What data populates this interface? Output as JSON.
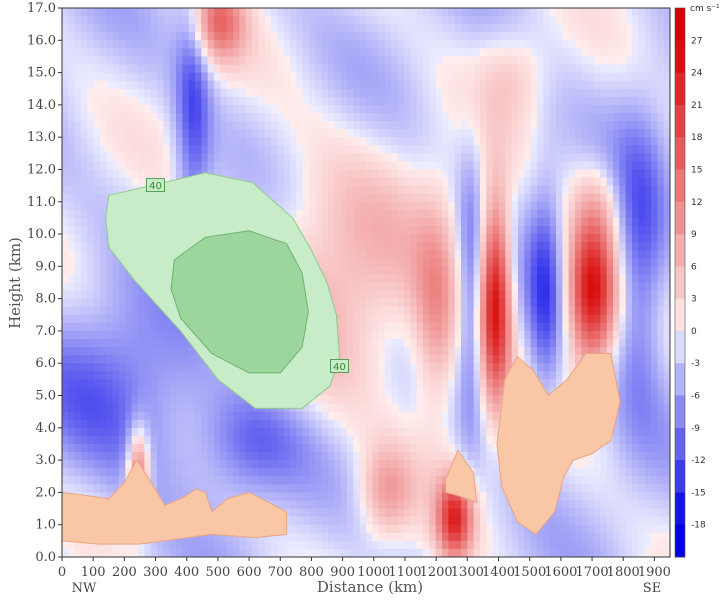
{
  "chart_data": {
    "type": "heatmap",
    "xlabel": "Distance (km)",
    "ylabel": "Height (km)",
    "xlim": [
      0,
      1950
    ],
    "ylim": [
      0,
      17
    ],
    "x_ticks": [
      "0",
      "100",
      "200",
      "300",
      "400",
      "500",
      "600",
      "700",
      "800",
      "900",
      "1000",
      "1100",
      "1200",
      "1300",
      "1400",
      "1500",
      "1600",
      "1700",
      "1800",
      "1900"
    ],
    "x_tick_values": [
      0,
      100,
      200,
      300,
      400,
      500,
      600,
      700,
      800,
      900,
      1000,
      1100,
      1200,
      1300,
      1400,
      1500,
      1600,
      1700,
      1800,
      1900
    ],
    "y_ticks": [
      "0.0",
      "1.0",
      "2.0",
      "3.0",
      "4.0",
      "5.0",
      "6.0",
      "7.0",
      "8.0",
      "9.0",
      "10.0",
      "11.0",
      "12.0",
      "13.0",
      "14.0",
      "15.0",
      "16.0",
      "17.0"
    ],
    "y_tick_values": [
      0,
      1,
      2,
      3,
      4,
      5,
      6,
      7,
      8,
      9,
      10,
      11,
      12,
      13,
      14,
      15,
      16,
      17
    ],
    "end_labels": {
      "left": "NW",
      "right": "SE"
    },
    "colorbar": {
      "unit": "cm s⁻¹",
      "levels": [
        "27",
        "24",
        "21",
        "18",
        "15",
        "12",
        "9",
        "6",
        "3",
        "0",
        "-3",
        "-6",
        "-9",
        "-12",
        "-15",
        "-18"
      ],
      "level_values": [
        27,
        24,
        21,
        18,
        15,
        12,
        9,
        6,
        3,
        0,
        -3,
        -6,
        -9,
        -12,
        -15,
        -18
      ],
      "range": [
        -21,
        30
      ]
    },
    "overlay_contour_labels": [
      "40",
      "40"
    ],
    "features": [
      {
        "kind": "updraft",
        "x": 500,
        "y": 16.6,
        "peak": 15,
        "sx": 60,
        "sy": 0.9
      },
      {
        "kind": "updraft",
        "x": 900,
        "y": 8.5,
        "peak": 8,
        "sx": 220,
        "sy": 2.8
      },
      {
        "kind": "updraft",
        "x": 1200,
        "y": 7.5,
        "peak": 10,
        "sx": 50,
        "sy": 2.4
      },
      {
        "kind": "updraft",
        "x": 1390,
        "y": 8.0,
        "peak": 27,
        "sx": 35,
        "sy": 2.2
      },
      {
        "kind": "updraft",
        "x": 1700,
        "y": 8.2,
        "peak": 27,
        "sx": 55,
        "sy": 1.6
      },
      {
        "kind": "updraft",
        "x": 1260,
        "y": 1.2,
        "peak": 22,
        "sx": 40,
        "sy": 0.9
      },
      {
        "kind": "updraft",
        "x": 245,
        "y": 2.6,
        "peak": 18,
        "sx": 25,
        "sy": 1.0
      },
      {
        "kind": "updraft",
        "x": 1040,
        "y": 2.0,
        "peak": 10,
        "sx": 60,
        "sy": 1.0
      },
      {
        "kind": "updraft",
        "x": 1450,
        "y": 15.0,
        "peak": 5,
        "sx": 80,
        "sy": 1.0
      },
      {
        "kind": "updraft",
        "x": 1720,
        "y": 11.0,
        "peak": 5,
        "sx": 60,
        "sy": 1.0
      },
      {
        "kind": "downdraft",
        "x": 420,
        "y": 14.0,
        "peak": -10,
        "sx": 40,
        "sy": 3.0
      },
      {
        "kind": "downdraft",
        "x": 1310,
        "y": 8.0,
        "peak": -8,
        "sx": 30,
        "sy": 3.0
      },
      {
        "kind": "downdraft",
        "x": 1550,
        "y": 8.0,
        "peak": -10,
        "sx": 40,
        "sy": 2.5
      },
      {
        "kind": "downdraft",
        "x": 1850,
        "y": 9.0,
        "peak": -10,
        "sx": 60,
        "sy": 3.0
      },
      {
        "kind": "downdraft",
        "x": 200,
        "y": 5.0,
        "peak": -8,
        "sx": 200,
        "sy": 2.0
      },
      {
        "kind": "downdraft",
        "x": 600,
        "y": 3.5,
        "peak": -8,
        "sx": 120,
        "sy": 1.2
      }
    ]
  }
}
